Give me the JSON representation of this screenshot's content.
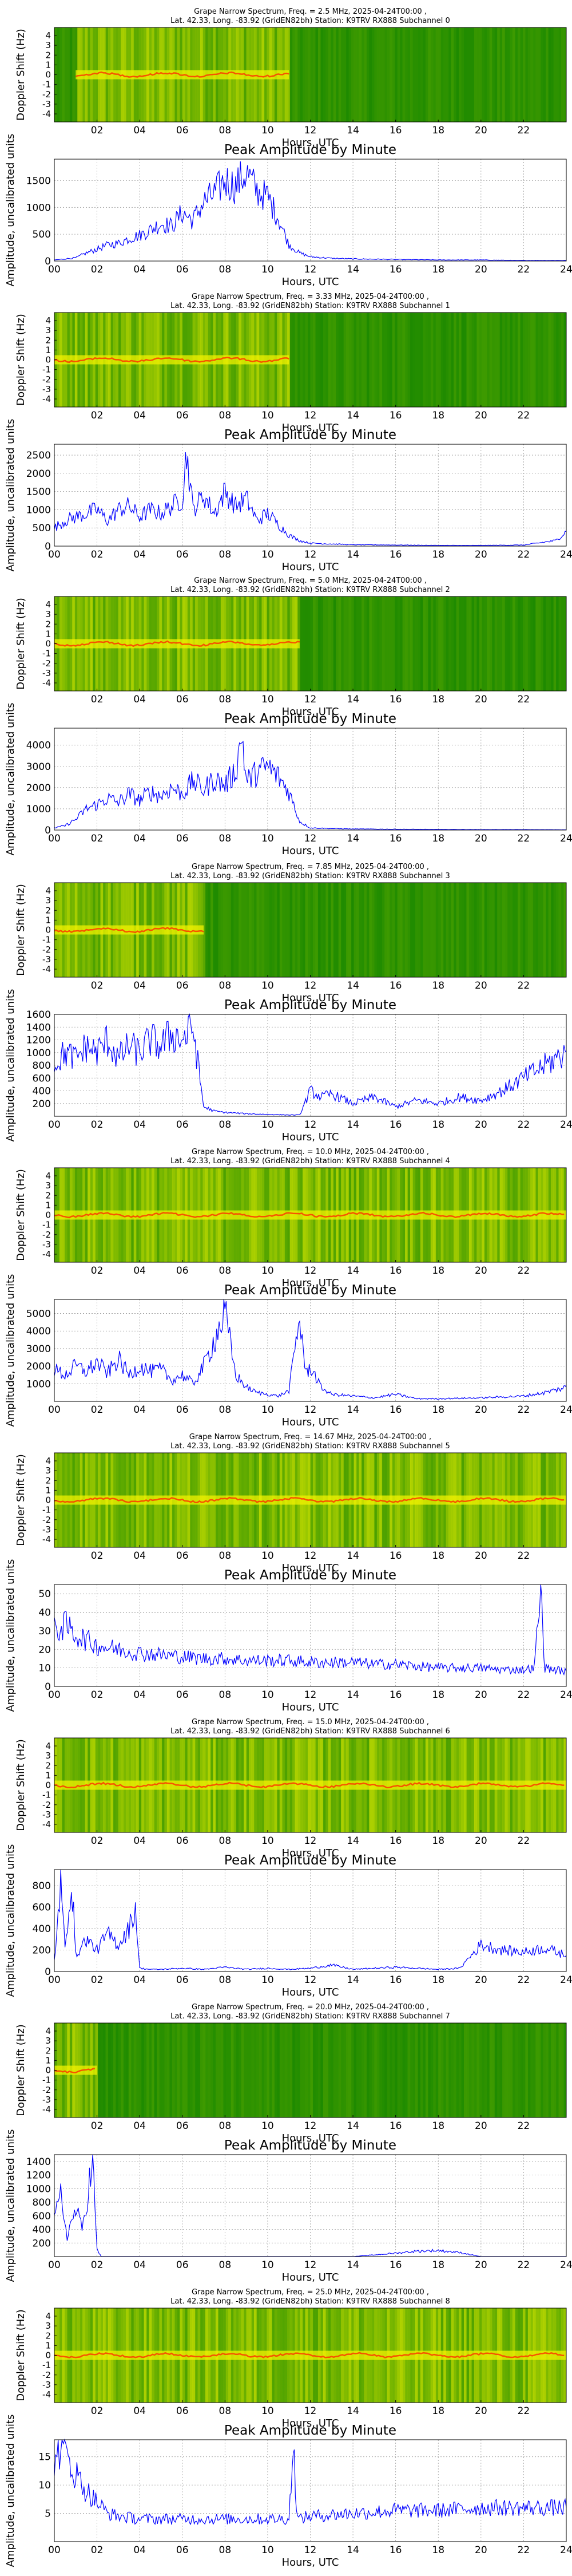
{
  "figure": {
    "peak_title": "Peak Amplitude by Minute",
    "xlabel": "Hours, UTC",
    "spec_ylabel": "Doppler Shift (Hz)",
    "amp_ylabel": "Amplitude, uncalibrated units",
    "spec_xticks": [
      "02",
      "04",
      "06",
      "08",
      "10",
      "12",
      "14",
      "16",
      "18",
      "20",
      "22"
    ],
    "amp_xticks": [
      "00",
      "02",
      "04",
      "06",
      "08",
      "10",
      "12",
      "14",
      "16",
      "18",
      "20",
      "22",
      "24"
    ],
    "spec_yticks": [
      "4",
      "3",
      "2",
      "1",
      "0",
      "-1",
      "-2",
      "-3",
      "-4"
    ],
    "colors": {
      "spec_bg": "#1e8a00",
      "spec_bright": "#f2f200",
      "spec_hot": "#ff3000",
      "line": "#0000ff",
      "grid": "#9a9a9a"
    }
  },
  "chart_data": [
    {
      "type": "heatmap",
      "title_line1": "Grape Narrow Spectrum, Freq. = 2.5 MHz, 2025-04-24T00:00 ,",
      "title_line2": "Lat.  42.33, Long. -83.92 (GridEN82bh) Station: K9TRV RX888 Subchannel 0",
      "xlabel": "Hours, UTC",
      "ylabel": "Doppler Shift (Hz)",
      "xlim": [
        0,
        24
      ],
      "ylim": [
        -5,
        5
      ],
      "active_hours": [
        1.0,
        11.0
      ],
      "trace_doppler_hz": 0
    },
    {
      "type": "line",
      "title": "Peak Amplitude by Minute",
      "xlabel": "Hours, UTC",
      "ylabel": "Amplitude, uncalibrated units",
      "xlim": [
        0,
        24
      ],
      "ylim": [
        0,
        1900
      ],
      "yticks": [
        0,
        500,
        1000,
        1500
      ],
      "x": [
        0,
        0.5,
        1,
        1.5,
        2,
        2.5,
        3,
        3.5,
        4,
        4.5,
        5,
        5.5,
        6,
        6.5,
        7,
        7.5,
        8,
        8.5,
        9,
        9.5,
        10,
        10.5,
        11,
        11.5,
        12,
        13,
        14,
        16,
        18,
        20,
        22,
        24
      ],
      "values": [
        20,
        40,
        60,
        150,
        220,
        300,
        330,
        420,
        480,
        580,
        700,
        650,
        900,
        760,
        1100,
        1250,
        1500,
        1400,
        1650,
        1300,
        1200,
        800,
        300,
        150,
        80,
        50,
        40,
        30,
        20,
        20,
        10,
        10
      ]
    },
    {
      "type": "heatmap",
      "title_line1": "Grape Narrow Spectrum, Freq. = 3.33 MHz, 2025-04-24T00:00 ,",
      "title_line2": "Lat.  42.33, Long. -83.92 (GridEN82bh) Station: K9TRV RX888 Subchannel 1",
      "xlabel": "Hours, UTC",
      "ylabel": "Doppler Shift (Hz)",
      "xlim": [
        0,
        24
      ],
      "ylim": [
        -5,
        5
      ],
      "active_hours": [
        0.0,
        11.0
      ],
      "trace_doppler_hz": 0
    },
    {
      "type": "line",
      "title": "Peak Amplitude by Minute",
      "xlabel": "Hours, UTC",
      "ylabel": "Amplitude, uncalibrated units",
      "xlim": [
        0,
        24
      ],
      "ylim": [
        0,
        2800
      ],
      "yticks": [
        0,
        500,
        1000,
        1500,
        2000,
        2500
      ],
      "x": [
        0,
        0.5,
        1,
        1.5,
        2,
        2.5,
        3,
        3.5,
        4,
        4.5,
        5,
        5.5,
        6,
        6.2,
        6.5,
        7,
        7.5,
        8,
        8.5,
        9,
        9.5,
        10,
        10.5,
        11,
        11.5,
        12,
        14,
        16,
        18,
        20,
        22,
        23.5,
        24
      ],
      "values": [
        500,
        700,
        800,
        900,
        1000,
        700,
        1000,
        1100,
        800,
        1000,
        900,
        1100,
        1300,
        2600,
        1000,
        1400,
        900,
        1500,
        1100,
        1300,
        700,
        900,
        600,
        300,
        150,
        80,
        40,
        30,
        20,
        20,
        30,
        150,
        400
      ]
    },
    {
      "type": "heatmap",
      "title_line1": "Grape Narrow Spectrum, Freq. = 5.0 MHz, 2025-04-24T00:00 ,",
      "title_line2": "Lat.  42.33, Long. -83.92 (GridEN82bh) Station: K9TRV RX888 Subchannel 2",
      "xlabel": "Hours, UTC",
      "ylabel": "Doppler Shift (Hz)",
      "xlim": [
        0,
        24
      ],
      "ylim": [
        -5,
        5
      ],
      "active_hours": [
        0.0,
        11.5
      ],
      "trace_doppler_hz": 0
    },
    {
      "type": "line",
      "title": "Peak Amplitude by Minute",
      "xlabel": "Hours, UTC",
      "ylabel": "Amplitude, uncalibrated units",
      "xlim": [
        0,
        24
      ],
      "ylim": [
        0,
        4800
      ],
      "yticks": [
        0,
        1000,
        2000,
        3000,
        4000
      ],
      "x": [
        0,
        0.5,
        1,
        1.5,
        2,
        2.5,
        3,
        3.5,
        4,
        4.5,
        5,
        5.5,
        6,
        6.5,
        7,
        7.5,
        8,
        8.5,
        8.8,
        9,
        9.5,
        10,
        10.5,
        11,
        11.5,
        12,
        14,
        16,
        18,
        20,
        22,
        24
      ],
      "values": [
        100,
        200,
        500,
        1000,
        1200,
        1500,
        1300,
        1700,
        1400,
        1800,
        1600,
        2000,
        1700,
        2300,
        1900,
        2400,
        2100,
        2800,
        4500,
        2300,
        2700,
        3000,
        2500,
        1800,
        400,
        100,
        50,
        40,
        30,
        20,
        20,
        10
      ]
    },
    {
      "type": "heatmap",
      "title_line1": "Grape Narrow Spectrum, Freq. = 7.85 MHz, 2025-04-24T00:00 ,",
      "title_line2": "Lat.  42.33, Long. -83.92 (GridEN82bh) Station: K9TRV RX888 Subchannel 3",
      "xlabel": "Hours, UTC",
      "ylabel": "Doppler Shift (Hz)",
      "xlim": [
        0,
        24
      ],
      "ylim": [
        -5,
        5
      ],
      "active_hours": [
        0.0,
        7.0
      ],
      "trace_doppler_hz": 0
    },
    {
      "type": "line",
      "title": "Peak Amplitude by Minute",
      "xlabel": "Hours, UTC",
      "ylabel": "Amplitude, uncalibrated units",
      "xlim": [
        0,
        24
      ],
      "ylim": [
        0,
        1600
      ],
      "yticks": [
        200,
        400,
        600,
        800,
        1000,
        1200,
        1400,
        1600
      ],
      "x": [
        0,
        0.5,
        1,
        1.5,
        2,
        2.5,
        3,
        3.5,
        4,
        4.5,
        5,
        5.5,
        6,
        6.5,
        7,
        7.5,
        8,
        9,
        10,
        11,
        11.5,
        12,
        12.5,
        13,
        14,
        15,
        16,
        17,
        18,
        19,
        20,
        21,
        22,
        23,
        24
      ],
      "values": [
        800,
        1000,
        900,
        1100,
        1000,
        1200,
        900,
        1100,
        1000,
        1200,
        1100,
        1300,
        1200,
        1400,
        150,
        80,
        60,
        40,
        30,
        20,
        20,
        400,
        300,
        350,
        200,
        300,
        150,
        250,
        200,
        300,
        250,
        400,
        600,
        800,
        1000
      ]
    },
    {
      "type": "heatmap",
      "title_line1": "Grape Narrow Spectrum, Freq. = 10.0 MHz, 2025-04-24T00:00 ,",
      "title_line2": "Lat.  42.33, Long. -83.92 (GridEN82bh) Station: K9TRV RX888 Subchannel 4",
      "xlabel": "Hours, UTC",
      "ylabel": "Doppler Shift (Hz)",
      "xlim": [
        0,
        24
      ],
      "ylim": [
        -5,
        5
      ],
      "active_hours": [
        0.0,
        24.0
      ],
      "trace_doppler_hz": 0
    },
    {
      "type": "line",
      "title": "Peak Amplitude by Minute",
      "xlabel": "Hours, UTC",
      "ylabel": "Amplitude, uncalibrated units",
      "xlim": [
        0,
        24
      ],
      "ylim": [
        0,
        5800
      ],
      "yticks": [
        1000,
        2000,
        3000,
        4000,
        5000
      ],
      "x": [
        0,
        0.5,
        1,
        1.5,
        2,
        2.5,
        3,
        3.5,
        4,
        4.5,
        5,
        5.5,
        6,
        6.5,
        7,
        7.5,
        8,
        8.5,
        9,
        9.5,
        10,
        10.5,
        11,
        11.5,
        11.8,
        12,
        12.5,
        13,
        14,
        15,
        16,
        17,
        18,
        20,
        22,
        23,
        24
      ],
      "values": [
        1800,
        1500,
        2000,
        1700,
        2200,
        1600,
        2400,
        1500,
        2000,
        1700,
        1800,
        1200,
        1500,
        1000,
        2000,
        3500,
        5000,
        1500,
        800,
        500,
        400,
        300,
        600,
        4800,
        1500,
        2000,
        800,
        400,
        300,
        200,
        400,
        150,
        150,
        200,
        300,
        500,
        800
      ]
    },
    {
      "type": "heatmap",
      "title_line1": "Grape Narrow Spectrum, Freq. = 14.67 MHz, 2025-04-24T00:00 ,",
      "title_line2": "Lat.  42.33, Long. -83.92 (GridEN82bh) Station: K9TRV RX888 Subchannel 5",
      "xlabel": "Hours, UTC",
      "ylabel": "Doppler Shift (Hz)",
      "xlim": [
        0,
        24
      ],
      "ylim": [
        -5,
        5
      ],
      "active_hours": [
        0.0,
        24.0
      ],
      "trace_doppler_hz": 0
    },
    {
      "type": "line",
      "title": "Peak Amplitude by Minute",
      "xlabel": "Hours, UTC",
      "ylabel": "Amplitude, uncalibrated units",
      "xlim": [
        0,
        24
      ],
      "ylim": [
        0,
        55
      ],
      "yticks": [
        0,
        10,
        20,
        30,
        40,
        50
      ],
      "x": [
        0,
        0.5,
        1,
        1.5,
        2,
        3,
        4,
        5,
        6,
        7,
        8,
        9,
        10,
        11,
        12,
        13,
        14,
        15,
        16,
        17,
        18,
        19,
        20,
        21,
        22,
        22.5,
        22.8,
        23,
        23.5,
        24
      ],
      "values": [
        30,
        33,
        28,
        25,
        22,
        20,
        18,
        17,
        16,
        15,
        15,
        14,
        14,
        14,
        13,
        13,
        13,
        12,
        12,
        11,
        10,
        10,
        10,
        9,
        9,
        10,
        52,
        10,
        9,
        8
      ]
    },
    {
      "type": "heatmap",
      "title_line1": "Grape Narrow Spectrum, Freq. = 15.0 MHz, 2025-04-24T00:00 ,",
      "title_line2": "Lat.  42.33, Long. -83.92 (GridEN82bh) Station: K9TRV RX888 Subchannel 6",
      "xlabel": "Hours, UTC",
      "ylabel": "Doppler Shift (Hz)",
      "xlim": [
        0,
        24
      ],
      "ylim": [
        -5,
        5
      ],
      "active_hours": [
        0.0,
        24.0
      ],
      "trace_doppler_hz": 0
    },
    {
      "type": "line",
      "title": "Peak Amplitude by Minute",
      "xlabel": "Hours, UTC",
      "ylabel": "Amplitude, uncalibrated units",
      "xlim": [
        0,
        24
      ],
      "ylim": [
        0,
        950
      ],
      "yticks": [
        0,
        200,
        400,
        600,
        800
      ],
      "x": [
        0,
        0.3,
        0.5,
        0.8,
        1,
        1.5,
        2,
        2.5,
        3,
        3.5,
        3.8,
        4,
        4.5,
        5,
        6,
        7,
        8,
        9,
        10,
        11,
        12,
        13,
        14,
        15,
        16,
        17,
        18,
        19,
        20,
        21,
        22,
        23,
        24
      ],
      "values": [
        100,
        820,
        200,
        900,
        150,
        300,
        200,
        350,
        250,
        400,
        600,
        30,
        20,
        20,
        30,
        20,
        40,
        20,
        30,
        20,
        30,
        60,
        20,
        30,
        40,
        30,
        20,
        30,
        250,
        200,
        180,
        220,
        150
      ]
    },
    {
      "type": "heatmap",
      "title_line1": "Grape Narrow Spectrum, Freq. = 20.0 MHz, 2025-04-24T00:00 ,",
      "title_line2": "Lat.  42.33, Long. -83.92 (GridEN82bh) Station: K9TRV RX888 Subchannel 7",
      "xlabel": "Hours, UTC",
      "ylabel": "Doppler Shift (Hz)",
      "xlim": [
        0,
        24
      ],
      "ylim": [
        -5,
        5
      ],
      "active_hours": [
        0.0,
        2.0
      ],
      "trace_doppler_hz": 0
    },
    {
      "type": "line",
      "title": "Peak Amplitude by Minute",
      "xlabel": "Hours, UTC",
      "ylabel": "Amplitude, uncalibrated units",
      "xlim": [
        0,
        24
      ],
      "ylim": [
        0,
        1500
      ],
      "yticks": [
        200,
        400,
        600,
        800,
        1000,
        1200,
        1400
      ],
      "x": [
        0,
        0.3,
        0.6,
        1,
        1.3,
        1.6,
        1.8,
        2,
        2.2,
        3,
        6,
        10,
        14,
        16,
        17,
        18,
        19,
        20,
        22,
        24
      ],
      "values": [
        500,
        900,
        300,
        700,
        400,
        1000,
        1400,
        100,
        0,
        0,
        0,
        0,
        0,
        50,
        80,
        90,
        60,
        0,
        0,
        0
      ]
    },
    {
      "type": "heatmap",
      "title_line1": "Grape Narrow Spectrum, Freq. = 25.0 MHz, 2025-04-24T00:00 ,",
      "title_line2": "Lat.  42.33, Long. -83.92 (GridEN82bh) Station: K9TRV RX888 Subchannel 8",
      "xlabel": "Hours, UTC",
      "ylabel": "Doppler Shift (Hz)",
      "xlim": [
        0,
        24
      ],
      "ylim": [
        -5,
        5
      ],
      "active_hours": [
        0.0,
        24.0
      ],
      "trace_doppler_hz": 0
    },
    {
      "type": "line",
      "title": "Peak Amplitude by Minute",
      "xlabel": "Hours, UTC",
      "ylabel": "Amplitude, uncalibrated units",
      "xlim": [
        0,
        24
      ],
      "ylim": [
        0,
        18
      ],
      "yticks": [
        5,
        10,
        15
      ],
      "x": [
        0,
        0.3,
        0.6,
        1,
        1.5,
        2,
        2.5,
        3,
        4,
        6,
        8,
        10,
        11,
        11.2,
        11.4,
        12,
        14,
        16,
        18,
        20,
        22,
        23,
        24
      ],
      "values": [
        15,
        17,
        15,
        12,
        9,
        7,
        5,
        4.5,
        4,
        4,
        4,
        4,
        4,
        17,
        4,
        4.5,
        5,
        5.5,
        5.5,
        6,
        6,
        6,
        6
      ]
    }
  ]
}
